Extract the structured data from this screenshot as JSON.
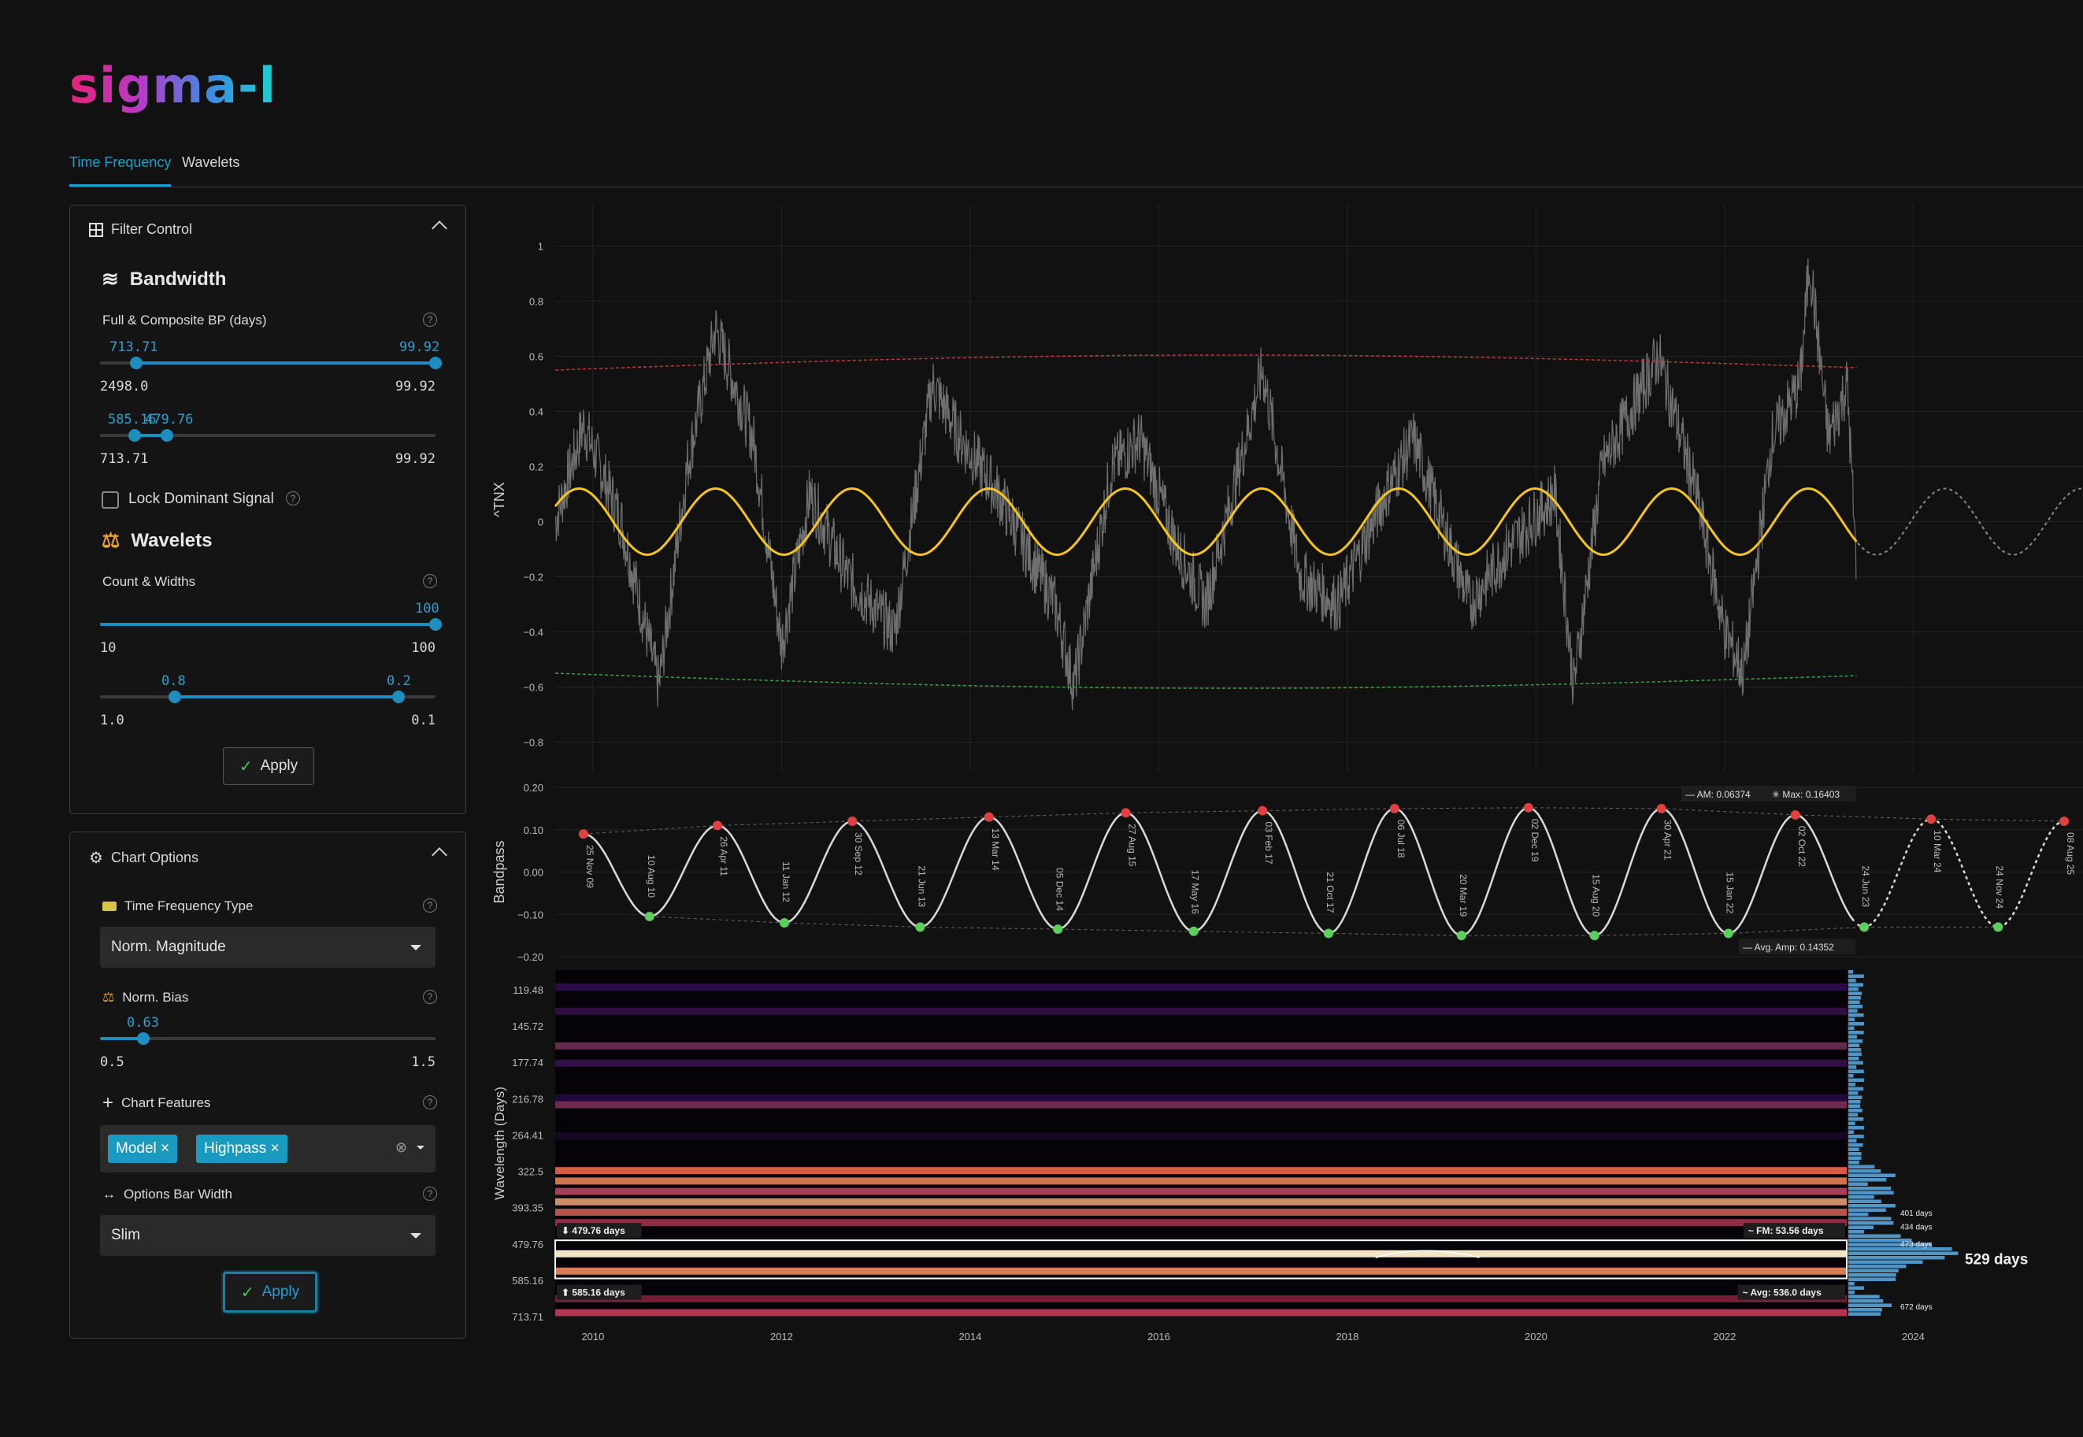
{
  "app": {
    "logo": "sigma-l"
  },
  "tabs": [
    {
      "label": "Time Frequency",
      "active": true
    },
    {
      "label": "Wavelets",
      "active": false
    }
  ],
  "filter_control": {
    "title": "Filter Control",
    "bandwidth_title": "Bandwidth",
    "bp_label": "Full & Composite BP (days)",
    "full_slider": {
      "low_val": "713.71",
      "high_val": "99.92",
      "min_label": "2498.0",
      "max_label": "99.92",
      "low_frac": 0.107,
      "high_frac": 1.0
    },
    "composite_slider": {
      "low_val": "585.16",
      "high_val": "479.76",
      "min_label": "713.71",
      "max_label": "99.92",
      "low_frac": 0.103,
      "high_frac": 0.2
    },
    "lock_label": "Lock Dominant Signal",
    "wavelets_title": "Wavelets",
    "count_label": "Count & Widths",
    "count_slider": {
      "val": "100",
      "min_label": "10",
      "max_label": "100",
      "frac": 1.0
    },
    "width_slider": {
      "low_val": "0.8",
      "high_val": "0.2",
      "min_label": "1.0",
      "max_label": "0.1",
      "low_frac": 0.222,
      "high_frac": 0.889
    },
    "apply_label": "Apply"
  },
  "chart_options": {
    "title": "Chart Options",
    "tf_type_label": "Time Frequency Type",
    "tf_type_value": "Norm. Magnitude",
    "bias_label": "Norm. Bias",
    "bias_slider": {
      "val": "0.63",
      "min_label": "0.5",
      "max_label": "1.5",
      "frac": 0.13
    },
    "features_label": "Chart Features",
    "features": [
      "Model",
      "Highpass"
    ],
    "bar_width_label": "Options Bar Width",
    "bar_width_value": "Slim",
    "apply_label": "Apply"
  },
  "chart_data": [
    {
      "type": "line",
      "ylabel": "^TNX",
      "y_ticks": [
        "1",
        "0.8",
        "0.6",
        "0.4",
        "0.2",
        "0",
        "−0.2",
        "−0.4",
        "−0.6",
        "−0.8"
      ],
      "ylim": [
        -0.85,
        1.05
      ],
      "xlim": [
        2009.6,
        2025.8
      ],
      "series": [
        {
          "role": "composite-model",
          "color": "#f5c518",
          "amplitude": 0.12,
          "period_days": 529,
          "phase_peak_year": 2011.3
        },
        {
          "role": "upper-envelope",
          "color": "#c03a3a",
          "y_start": 0.55,
          "y_mid": 0.6,
          "y_end": 0.58
        },
        {
          "role": "lower-envelope",
          "color": "#3aa04a",
          "y_start": -0.55,
          "y_mid": -0.6,
          "y_end": -0.58
        }
      ]
    },
    {
      "type": "line",
      "ylabel": "Bandpass",
      "y_ticks": [
        "0.20",
        "0.10",
        "0.00",
        "−0.10",
        "−0.20"
      ],
      "ylim": [
        -0.2,
        0.2
      ],
      "annotations": {
        "am": "AM: 0.06374",
        "max": "Max: 0.16403",
        "avg_amp": "Avg. Amp: 0.14352"
      },
      "peaks": [
        {
          "label": "25 Nov 09",
          "x": 2009.9,
          "y": 0.09
        },
        {
          "label": "26 Apr 11",
          "x": 2011.32,
          "y": 0.11
        },
        {
          "label": "30 Sep 12",
          "x": 2012.75,
          "y": 0.12
        },
        {
          "label": "13 Mar 14",
          "x": 2014.2,
          "y": 0.13
        },
        {
          "label": "27 Aug 15",
          "x": 2015.65,
          "y": 0.14
        },
        {
          "label": "03 Feb 17",
          "x": 2017.1,
          "y": 0.145
        },
        {
          "label": "06 Jul 18",
          "x": 2018.5,
          "y": 0.15
        },
        {
          "label": "02 Dec 19",
          "x": 2019.92,
          "y": 0.152
        },
        {
          "label": "30 Apr 21",
          "x": 2021.33,
          "y": 0.15
        },
        {
          "label": "02 Oct 22",
          "x": 2022.75,
          "y": 0.135
        },
        {
          "label": "10 Mar 24",
          "x": 2024.19,
          "y": 0.125
        },
        {
          "label": "08 Aug 25",
          "x": 2025.6,
          "y": 0.12
        }
      ],
      "troughs": [
        {
          "label": "10 Aug 10",
          "x": 2010.6,
          "y": -0.105
        },
        {
          "label": "11 Jan 12",
          "x": 2012.03,
          "y": -0.12
        },
        {
          "label": "21 Jun 13",
          "x": 2013.47,
          "y": -0.13
        },
        {
          "label": "05 Dec 14",
          "x": 2014.93,
          "y": -0.135
        },
        {
          "label": "17 May 16",
          "x": 2016.37,
          "y": -0.14
        },
        {
          "label": "21 Oct 17",
          "x": 2017.8,
          "y": -0.145
        },
        {
          "label": "20 Mar 19",
          "x": 2019.21,
          "y": -0.15
        },
        {
          "label": "15 Aug 20",
          "x": 2020.62,
          "y": -0.15
        },
        {
          "label": "15 Jan 22",
          "x": 2022.04,
          "y": -0.145
        },
        {
          "label": "24 Jun 23",
          "x": 2023.48,
          "y": -0.13
        },
        {
          "label": "24 Nov 24",
          "x": 2024.9,
          "y": -0.13
        }
      ]
    },
    {
      "type": "heatmap",
      "ylabel": "Wavelength (Days)",
      "y_ticks": [
        "119.48",
        "145.72",
        "177.74",
        "216.78",
        "264.41",
        "322.5",
        "393.35",
        "479.76",
        "585.16",
        "713.71"
      ],
      "x_ticks": [
        "2010",
        "2012",
        "2014",
        "2016",
        "2018",
        "2020",
        "2022",
        "2024"
      ],
      "band_labels": {
        "upper": "479.76 days",
        "lower": "585.16 days",
        "fm": "FM: 53.56 days",
        "avg": "Avg: 536.0 days"
      },
      "spectrum_labels": [
        "401 days",
        "434 days",
        "473 days",
        "529 days",
        "672 days"
      ],
      "dominant": "529 days"
    }
  ]
}
